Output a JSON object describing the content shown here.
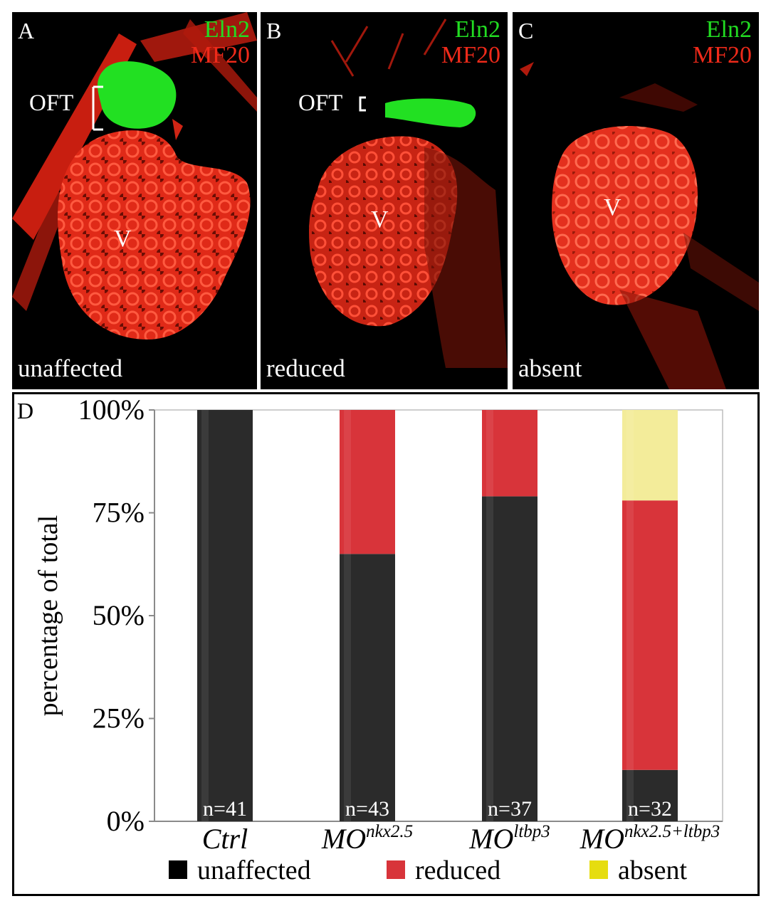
{
  "panels": [
    {
      "letter": "A",
      "markers": [
        "Eln2",
        "MF20"
      ],
      "status": "unaffected",
      "ventricle_label": "V",
      "oft_label": "OFT"
    },
    {
      "letter": "B",
      "markers": [
        "Eln2",
        "MF20"
      ],
      "status": "reduced",
      "ventricle_label": "V",
      "oft_label": "OFT"
    },
    {
      "letter": "C",
      "markers": [
        "Eln2",
        "MF20"
      ],
      "status": "absent",
      "ventricle_label": "V"
    }
  ],
  "colors": {
    "eln2": "#22dd22",
    "mf20": "#ee2a1a",
    "unaffected": "#2b2b2b",
    "reduced": "#d8343a",
    "absent": "#f3ec9a",
    "absent_legend": "#e6dd10"
  },
  "chart_data": {
    "type": "bar",
    "stacked": true,
    "panel_letter": "D",
    "ylabel": "percentage of total",
    "ylim": [
      0,
      100
    ],
    "yticks": [
      "0%",
      "25%",
      "50%",
      "75%",
      "100%"
    ],
    "categories": [
      {
        "base": "Ctrl",
        "sup": ""
      },
      {
        "base": "MO",
        "sup": "nkx2.5"
      },
      {
        "base": "MO",
        "sup": "ltbp3"
      },
      {
        "base": "MO",
        "sup": "nkx2.5+ltbp3"
      }
    ],
    "n_labels": [
      "n=41",
      "n=43",
      "n=37",
      "n=32"
    ],
    "series": [
      {
        "name": "unaffected",
        "values": [
          100,
          65,
          79,
          12.5
        ]
      },
      {
        "name": "reduced",
        "values": [
          0,
          35,
          21,
          65.5
        ]
      },
      {
        "name": "absent",
        "values": [
          0,
          0,
          0,
          22
        ]
      }
    ],
    "grid": false,
    "legend_position": "bottom"
  }
}
